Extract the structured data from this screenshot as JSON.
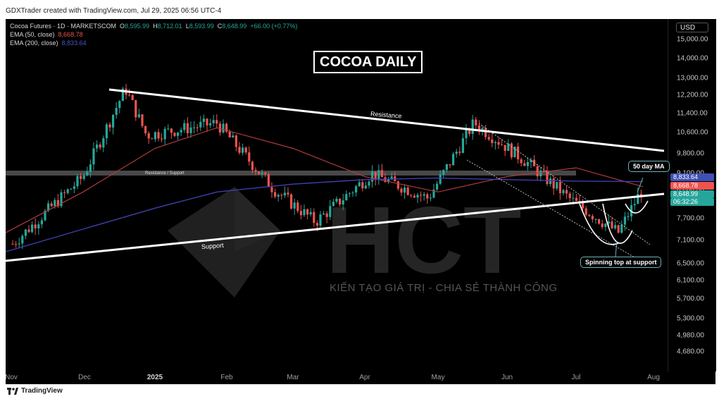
{
  "header": {
    "created_by": "GDXTrader created with TradingView.com, Jul 29, 2025 06:56 UTC-4"
  },
  "legend": {
    "symbol": "Cocoa Futures · 1D · MARKETSCOM",
    "ohlc": {
      "o_label": "O",
      "o": "8,595.99",
      "h_label": "H",
      "h": "8,712.01",
      "l_label": "L",
      "l": "8,593.99",
      "c_label": "C",
      "c": "8,648.99",
      "change": "+66.00 (+0.77%)"
    },
    "ema50_label": "EMA (50, close)",
    "ema50_value": "8,668.78",
    "ema200_label": "EMA (200, close)",
    "ema200_value": "8,833.64"
  },
  "title": "COCOA DAILY",
  "currency": "USD",
  "annotations": {
    "resistance": "Resistance",
    "resistance_support": "Resistance / Support",
    "support": "Support",
    "ma_callout": "50 day MA",
    "spinning_top": "Spinning top at support"
  },
  "price_tags": [
    {
      "value": "8,833.64",
      "color": "#3f51b5"
    },
    {
      "value": "8,668.78",
      "color": "#ef5350"
    },
    {
      "value": "8,648.99",
      "color": "#26a69a"
    },
    {
      "value": "06:32:26",
      "color": "#26a69a"
    }
  ],
  "watermark": {
    "logo": "HCT",
    "tagline": "KIẾN TẠO GIÁ TRỊ - CHIA SẺ THÀNH CÔNG"
  },
  "footer": {
    "brand": "TradingView"
  },
  "colors": {
    "up": "#26a69a",
    "down": "#ef5350",
    "ema50": "#b23a3a",
    "ema200": "#3f3fb0",
    "background": "#000000"
  },
  "chart_data": {
    "type": "line",
    "title": "COCOA DAILY",
    "y_axis_scale": "log",
    "ylim": [
      4350,
      16200
    ],
    "y_ticks": [
      "15,000.00",
      "14,000.00",
      "13,000.00",
      "12,200.00",
      "11,400.00",
      "10,600.00",
      "9,800.00",
      "9,100.00",
      "8,500.00",
      "7,700.00",
      "7,100.00",
      "6,500.00",
      "6,100.00",
      "5,700.00",
      "5,300.00",
      "4,980.00",
      "4,680.00"
    ],
    "x_ticks": [
      "Nov",
      "Dec",
      "2025",
      "Feb",
      "Mar",
      "Apr",
      "May",
      "Jun",
      "Jul",
      "Aug"
    ],
    "x_tick_bold": [
      false,
      false,
      true,
      false,
      false,
      false,
      false,
      false,
      false,
      false
    ],
    "series": [
      {
        "name": "Cocoa Futures",
        "x": [
          "Nov",
          "Dec",
          "Dec",
          "2025",
          "Feb",
          "Mar",
          "Apr",
          "Apr",
          "May",
          "May",
          "Jun",
          "Jul",
          "Jul",
          "Jul"
        ],
        "values": [
          7000,
          9000,
          12500,
          10500,
          11000,
          8600,
          7600,
          9100,
          8300,
          11000,
          9500,
          8300,
          7300,
          8650
        ]
      },
      {
        "name": "EMA (50, close)",
        "x": [
          "Nov",
          "Dec",
          "2025",
          "Feb",
          "Mar",
          "Apr",
          "May",
          "Jun",
          "Jul",
          "Jul"
        ],
        "values": [
          7300,
          8500,
          10000,
          10800,
          10000,
          9000,
          8500,
          9000,
          9300,
          8668.78
        ]
      },
      {
        "name": "EMA (200, close)",
        "x": [
          "Nov",
          "Dec",
          "2025",
          "Feb",
          "Mar",
          "Apr",
          "May",
          "Jun",
          "Jul",
          "Jul"
        ],
        "values": [
          6800,
          7400,
          8000,
          8500,
          8750,
          8900,
          8950,
          8900,
          8850,
          8833.64
        ]
      }
    ],
    "grid": false
  }
}
